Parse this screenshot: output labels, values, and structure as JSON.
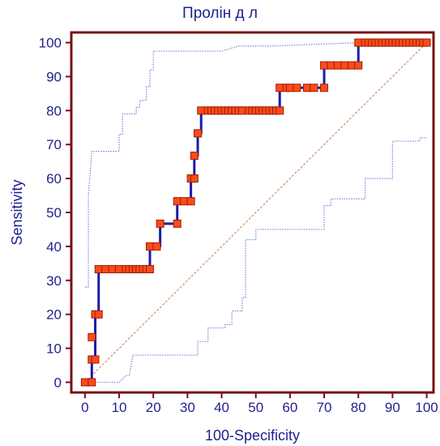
{
  "chart_data": {
    "type": "line",
    "title": "Пролін д л",
    "xlabel": "100-Specificity",
    "ylabel": "Sensitivity",
    "xlim": [
      -4,
      102
    ],
    "ylim": [
      -3,
      103
    ],
    "xticks": [
      0,
      10,
      20,
      30,
      40,
      50,
      60,
      70,
      80,
      90,
      100
    ],
    "yticks": [
      0,
      10,
      20,
      30,
      40,
      50,
      60,
      70,
      80,
      90,
      100
    ],
    "grid": false,
    "colors": {
      "roc_line": "#1c1ca8",
      "marker_fill": "#ff4a1a",
      "marker_edge": "#9c1e00",
      "ci_band": "#7b83d8",
      "diagonal": "#d98a6f",
      "frame": "#7a1010",
      "text": "#1f1f8f"
    },
    "series": [
      {
        "role": "roc_curve",
        "x": [
          0,
          2,
          2,
          3,
          3,
          4,
          4,
          19,
          19,
          22,
          22,
          27,
          27,
          31,
          31,
          32,
          32,
          33,
          33,
          34,
          34,
          57,
          57,
          65,
          65,
          70,
          70,
          80,
          80,
          100
        ],
        "y": [
          0,
          0,
          6.7,
          6.7,
          20,
          20,
          33.3,
          33.3,
          40,
          40,
          46.7,
          46.7,
          53.3,
          53.3,
          60,
          60,
          66.7,
          66.7,
          73.3,
          73.3,
          80,
          80,
          86.7,
          86.7,
          86.7,
          86.7,
          93.3,
          93.3,
          100,
          100
        ]
      },
      {
        "role": "upper_ci",
        "x": [
          0,
          1,
          1,
          2,
          10,
          10,
          11,
          11,
          15,
          15,
          16,
          16,
          18,
          18,
          19,
          19,
          20,
          20,
          40,
          45,
          55,
          80,
          100
        ],
        "y": [
          28,
          28,
          55,
          68,
          68,
          73,
          73,
          79,
          79,
          81,
          81,
          83,
          83,
          87,
          87,
          92,
          92,
          97.5,
          97.5,
          99,
          99,
          100,
          100
        ]
      },
      {
        "role": "lower_ci",
        "x": [
          0,
          10,
          12,
          13,
          14,
          33,
          33,
          36,
          36,
          41,
          41,
          43,
          43,
          46,
          46,
          47,
          47,
          50,
          50,
          70,
          70,
          72,
          72,
          82,
          82,
          90,
          90,
          98,
          98,
          100
        ],
        "y": [
          0,
          0,
          2,
          2,
          8,
          8,
          12,
          12,
          16,
          16,
          17,
          17,
          21,
          21,
          25,
          25,
          42,
          42,
          45,
          45,
          52,
          52,
          54,
          54,
          60,
          60,
          71,
          71,
          72,
          72
        ]
      }
    ],
    "markers": {
      "roc_points": [
        [
          0,
          0
        ],
        [
          2,
          0
        ],
        [
          2,
          6.7
        ],
        [
          3,
          6.7
        ],
        [
          2,
          13.3
        ],
        [
          3,
          20
        ],
        [
          4,
          20
        ],
        [
          4,
          33.3
        ],
        [
          6,
          33.3
        ],
        [
          8,
          33.3
        ],
        [
          10,
          33.3
        ],
        [
          12,
          33.3
        ],
        [
          13,
          33.3
        ],
        [
          14,
          33.3
        ],
        [
          15,
          33.3
        ],
        [
          16,
          33.3
        ],
        [
          17,
          33.3
        ],
        [
          18,
          33.3
        ],
        [
          19,
          33.3
        ],
        [
          19,
          40
        ],
        [
          21,
          40
        ],
        [
          22,
          46.7
        ],
        [
          27,
          46.7
        ],
        [
          27,
          53.3
        ],
        [
          29,
          53.3
        ],
        [
          31,
          53.3
        ],
        [
          31,
          60
        ],
        [
          32,
          60
        ],
        [
          32,
          66.7
        ],
        [
          33,
          73.3
        ],
        [
          34,
          80
        ],
        [
          36,
          80
        ],
        [
          37,
          80
        ],
        [
          38,
          80
        ],
        [
          39,
          80
        ],
        [
          40,
          80
        ],
        [
          41,
          80
        ],
        [
          42,
          80
        ],
        [
          43,
          80
        ],
        [
          44,
          80
        ],
        [
          45,
          80
        ],
        [
          46,
          80
        ],
        [
          48,
          80
        ],
        [
          49,
          80
        ],
        [
          50,
          80
        ],
        [
          51,
          80
        ],
        [
          52,
          80
        ],
        [
          53,
          80
        ],
        [
          54,
          80
        ],
        [
          55,
          80
        ],
        [
          56,
          80
        ],
        [
          57,
          80
        ],
        [
          57,
          86.7
        ],
        [
          59,
          86.7
        ],
        [
          60,
          86.7
        ],
        [
          62,
          86.7
        ],
        [
          65,
          86.7
        ],
        [
          67,
          86.7
        ],
        [
          70,
          86.7
        ],
        [
          70,
          93.3
        ],
        [
          72,
          93.3
        ],
        [
          74,
          93.3
        ],
        [
          76,
          93.3
        ],
        [
          78,
          93.3
        ],
        [
          80,
          93.3
        ],
        [
          80,
          100
        ],
        [
          82,
          100
        ],
        [
          83,
          100
        ],
        [
          84,
          100
        ],
        [
          85,
          100
        ],
        [
          86,
          100
        ],
        [
          87,
          100
        ],
        [
          88,
          100
        ],
        [
          89,
          100
        ],
        [
          90,
          100
        ],
        [
          91,
          100
        ],
        [
          92,
          100
        ],
        [
          93,
          100
        ],
        [
          94,
          100
        ],
        [
          95,
          100
        ],
        [
          96,
          100
        ],
        [
          97,
          100
        ],
        [
          98,
          100
        ],
        [
          99,
          100
        ],
        [
          100,
          100
        ]
      ]
    },
    "diagonal": {
      "x": [
        0,
        100
      ],
      "y": [
        0,
        100
      ]
    }
  }
}
